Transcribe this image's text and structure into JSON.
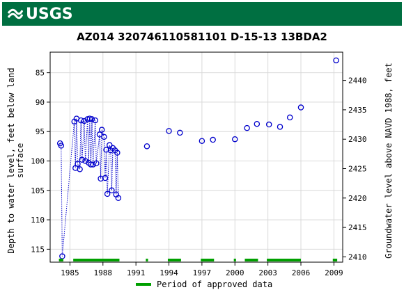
{
  "header": {
    "logo_text": "USGS",
    "brand_color": "#006f41"
  },
  "chart_data": {
    "type": "scatter",
    "title": "AZ014 320746110581101 D-15-13 13BDA2",
    "ylabel_left_line1": "Depth to water level, feet below land",
    "ylabel_left_line2": "surface",
    "ylabel_right": "Groundwater level above NAVD 1988, feet",
    "x_ticks": [
      "1985",
      "1988",
      "1991",
      "1994",
      "1997",
      "2000",
      "2003",
      "2006",
      "2009"
    ],
    "x_tick_values": [
      1985,
      1988,
      1991,
      1994,
      1997,
      2000,
      2003,
      2006,
      2009
    ],
    "xlim": [
      1983.2,
      2009.8
    ],
    "y_left_ticks": [
      "85",
      "90",
      "95",
      "100",
      "105",
      "110",
      "115"
    ],
    "y_left_tick_values": [
      85,
      90,
      95,
      100,
      105,
      110,
      115
    ],
    "ylim_left": [
      81.5,
      117.2
    ],
    "y_right_ticks": [
      "2440",
      "2435",
      "2430",
      "2425",
      "2420",
      "2415",
      "2410"
    ],
    "y_right_tick_values": [
      2440,
      2435,
      2430,
      2425,
      2420,
      2415,
      2410
    ],
    "right_offset": 2526.3,
    "grid": true,
    "marker_color": "#0000cc",
    "series": [
      {
        "points": [
          [
            1984.1,
            97.0
          ],
          [
            1984.2,
            97.4
          ],
          [
            1984.3,
            116.2
          ],
          [
            1985.4,
            93.3
          ],
          [
            1985.5,
            101.2
          ],
          [
            1985.6,
            92.8
          ],
          [
            1985.7,
            100.5
          ],
          [
            1985.9,
            101.4
          ],
          [
            1986.0,
            93.1
          ],
          [
            1986.1,
            99.8
          ],
          [
            1986.3,
            93.2
          ],
          [
            1986.4,
            100.0
          ],
          [
            1986.6,
            92.9
          ],
          [
            1986.7,
            100.3
          ],
          [
            1986.8,
            92.8
          ],
          [
            1986.9,
            100.6
          ],
          [
            1987.0,
            92.9
          ],
          [
            1987.1,
            100.6
          ],
          [
            1987.3,
            93.1
          ],
          [
            1987.4,
            100.4
          ],
          [
            1987.7,
            95.5
          ],
          [
            1987.8,
            103.0
          ],
          [
            1987.9,
            94.7
          ],
          [
            1988.1,
            95.9
          ],
          [
            1988.2,
            102.9
          ],
          [
            1988.3,
            98.1
          ],
          [
            1988.4,
            105.6
          ],
          [
            1988.6,
            97.3
          ],
          [
            1988.7,
            98.2
          ],
          [
            1988.8,
            105.0
          ],
          [
            1988.9,
            97.8
          ],
          [
            1989.1,
            98.2
          ],
          [
            1989.2,
            105.7
          ],
          [
            1989.3,
            98.6
          ],
          [
            1989.4,
            106.3
          ],
          [
            1992.0,
            97.5
          ],
          [
            1994.0,
            94.9
          ],
          [
            1995.0,
            95.2
          ],
          [
            1997.0,
            96.6
          ],
          [
            1998.0,
            96.4
          ],
          [
            2000.0,
            96.3
          ],
          [
            2001.1,
            94.4
          ],
          [
            2002.0,
            93.7
          ],
          [
            2003.1,
            93.8
          ],
          [
            2004.1,
            94.2
          ],
          [
            2005.0,
            92.6
          ],
          [
            2006.0,
            90.9
          ],
          [
            2009.2,
            82.9
          ]
        ],
        "connected_segments": [
          [
            0,
            34
          ]
        ]
      }
    ],
    "approved_periods": [
      [
        1984.0,
        1984.4
      ],
      [
        1985.3,
        1989.5
      ],
      [
        1991.9,
        1992.1
      ],
      [
        1993.9,
        1995.1
      ],
      [
        1996.9,
        1998.1
      ],
      [
        1999.9,
        2000.1
      ],
      [
        2000.9,
        2002.1
      ],
      [
        2002.9,
        2006.0
      ],
      [
        2008.9,
        2009.3
      ]
    ],
    "approved_color": "#00a000",
    "legend": "Period of approved data"
  }
}
